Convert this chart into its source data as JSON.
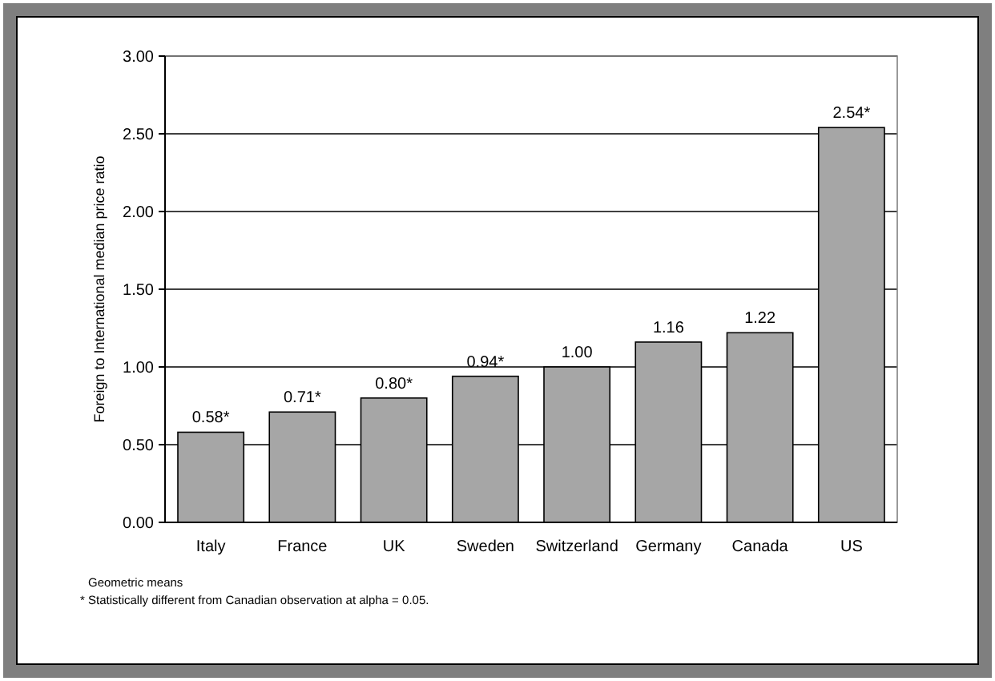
{
  "chart_data": {
    "type": "bar",
    "ylabel": "Foreign to International median price ratio",
    "categories": [
      "Italy",
      "France",
      "UK",
      "Sweden",
      "Switzerland",
      "Germany",
      "Canada",
      "US"
    ],
    "values": [
      0.58,
      0.71,
      0.8,
      0.94,
      1.0,
      1.16,
      1.22,
      2.54
    ],
    "value_labels": [
      "0.58*",
      "0.71*",
      "0.80*",
      "0.94*",
      "1.00",
      "1.16",
      "1.22",
      "2.54*"
    ],
    "color": "#a6a6a6",
    "ylim": [
      0,
      3
    ],
    "yticks": [
      {
        "value": 0,
        "label": "0.00"
      },
      {
        "value": 0.5,
        "label": "0.50"
      },
      {
        "value": 1,
        "label": "1.00"
      },
      {
        "value": 1.5,
        "label": "1.50"
      },
      {
        "value": 2,
        "label": "2.00"
      },
      {
        "value": 2.5,
        "label": "2.50"
      },
      {
        "value": 3,
        "label": "3.00"
      }
    ],
    "grid": "y",
    "annotations": [
      "Geometric means",
      "* Statistically different from Canadian observation at alpha = 0.05."
    ]
  }
}
